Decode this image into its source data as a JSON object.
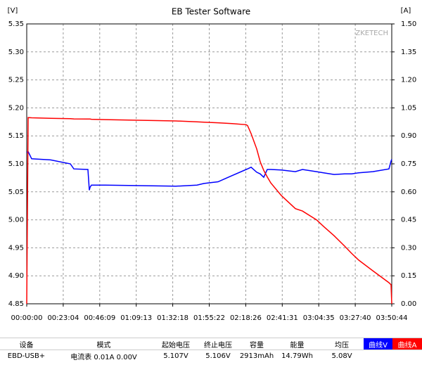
{
  "chart_data": {
    "type": "line",
    "title": "EB Tester Software",
    "y_label": "[V]",
    "y2_label": "[A]",
    "watermark": "ZKETECH",
    "x": [
      0,
      53,
      187,
      907,
      1654,
      1787,
      2321,
      2374,
      2401,
      2454,
      2988,
      5655,
      6455,
      6722,
      7256,
      7789,
      8323,
      8376,
      8510,
      8723,
      8856,
      8990,
      9123,
      9256,
      9656,
      10190,
      10457,
      10990,
      11257,
      11657,
      12057,
      12324,
      12591,
      13124,
      13738,
      13818,
      13844
    ],
    "xlim": [
      0,
      13844
    ],
    "xticks": [
      {
        "value": 0,
        "label": "00:00:00"
      },
      {
        "value": 1384.4,
        "label": "00:23:04"
      },
      {
        "value": 2768.8,
        "label": "00:46:09"
      },
      {
        "value": 4153.2,
        "label": "01:09:13"
      },
      {
        "value": 5537.6,
        "label": "01:32:18"
      },
      {
        "value": 6922,
        "label": "01:55:22"
      },
      {
        "value": 8306.4,
        "label": "02:18:26"
      },
      {
        "value": 9690.8,
        "label": "02:41:31"
      },
      {
        "value": 11075.2,
        "label": "03:04:35"
      },
      {
        "value": 12459.6,
        "label": "03:27:40"
      },
      {
        "value": 13844,
        "label": "03:50:44"
      }
    ],
    "ylim": [
      4.85,
      5.35
    ],
    "yticks": [
      {
        "value": 4.85,
        "label": "4.85"
      },
      {
        "value": 4.9,
        "label": "4.90"
      },
      {
        "value": 4.95,
        "label": "4.95"
      },
      {
        "value": 5.0,
        "label": "5.00"
      },
      {
        "value": 5.05,
        "label": "5.05"
      },
      {
        "value": 5.1,
        "label": "5.10"
      },
      {
        "value": 5.15,
        "label": "5.15"
      },
      {
        "value": 5.2,
        "label": "5.20"
      },
      {
        "value": 5.25,
        "label": "5.25"
      },
      {
        "value": 5.3,
        "label": "5.30"
      },
      {
        "value": 5.35,
        "label": "5.35"
      }
    ],
    "y2lim": [
      0,
      1.5
    ],
    "y2ticks": [
      {
        "value": 0,
        "label": "0.00"
      },
      {
        "value": 0.15,
        "label": "0.15"
      },
      {
        "value": 0.3,
        "label": "0.30"
      },
      {
        "value": 0.45,
        "label": "0.45"
      },
      {
        "value": 0.6,
        "label": "0.60"
      },
      {
        "value": 0.75,
        "label": "0.75"
      },
      {
        "value": 0.9,
        "label": "0.90"
      },
      {
        "value": 1.05,
        "label": "1.05"
      },
      {
        "value": 1.2,
        "label": "1.20"
      },
      {
        "value": 1.35,
        "label": "1.35"
      },
      {
        "value": 1.5,
        "label": "1.50"
      }
    ],
    "grid": true,
    "series": [
      {
        "name": "曲线V",
        "color": "#0000ff",
        "values": [
          5.12,
          5.122,
          5.109,
          5.107,
          5.1,
          5.091,
          5.09,
          5.053,
          5.058,
          5.062,
          5.062,
          5.06,
          5.062,
          5.065,
          5.068,
          5.079,
          5.09,
          5.091,
          5.094,
          5.085,
          5.082,
          5.076,
          5.09,
          5.09,
          5.089,
          5.086,
          5.09,
          5.086,
          5.084,
          5.081,
          5.082,
          5.082,
          5.084,
          5.086,
          5.091,
          5.105,
          5.108
        ]
      },
      {
        "name": "曲线A",
        "color": "#ff0000",
        "axis": "y2",
        "values": [
          0,
          0.998,
          0.997,
          0.994,
          0.992,
          0.991,
          0.99,
          0.99,
          0.99,
          0.989,
          0.987,
          0.98,
          0.975,
          0.973,
          0.97,
          0.966,
          0.96,
          0.955,
          0.912,
          0.83,
          0.761,
          0.715,
          0.68,
          0.648,
          0.58,
          0.51,
          0.497,
          0.45,
          0.415,
          0.365,
          0.309,
          0.27,
          0.234,
          0.177,
          0.113,
          0.102,
          0
        ]
      }
    ]
  },
  "table": {
    "headers": [
      "设备",
      "模式",
      "起始电压",
      "终止电压",
      "容量",
      "能量",
      "均压"
    ],
    "rows": [
      [
        "EBD-USB+",
        "电流表  0.01A  0.00V",
        "5.107V",
        "5.106V",
        "2913mAh",
        "14.79Wh",
        "5.08V"
      ]
    ]
  }
}
